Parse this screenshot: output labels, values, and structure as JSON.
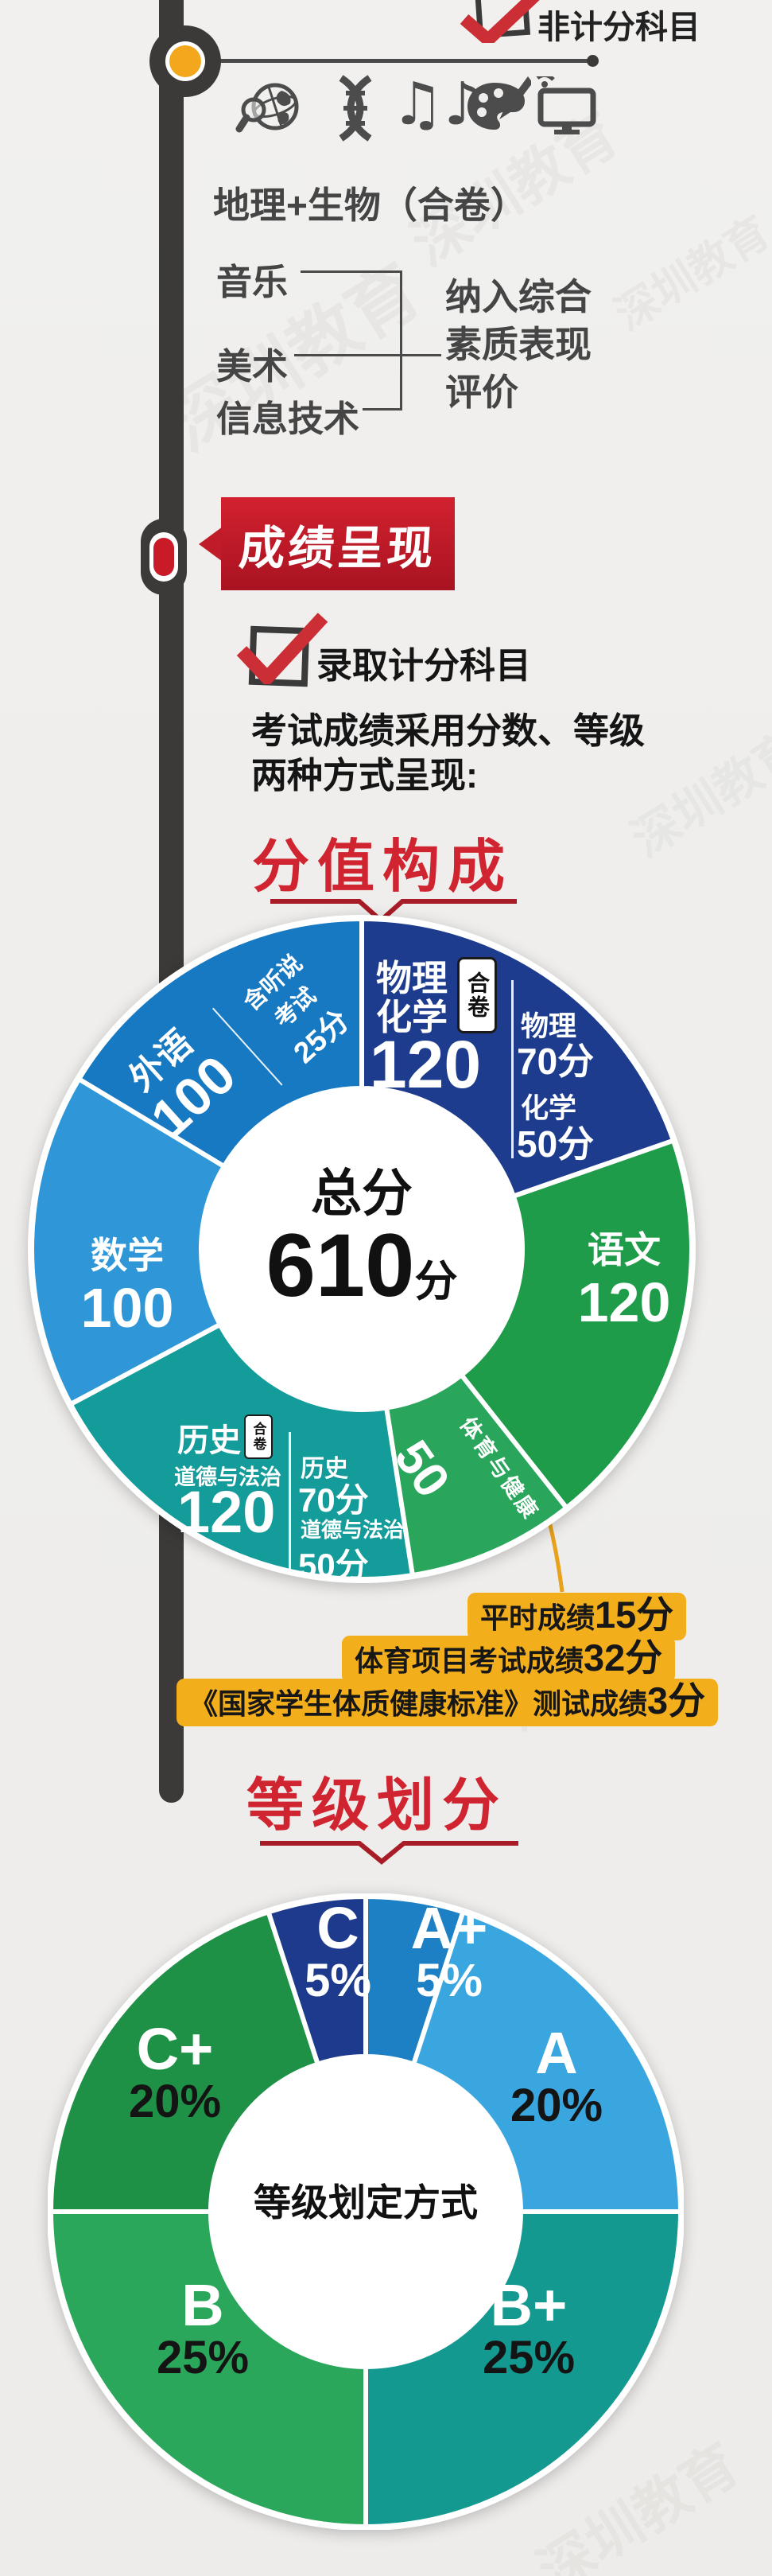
{
  "page": {
    "watermark": "深圳教育"
  },
  "non_scoring_section": {
    "checkbox_label": "非计分科目",
    "icons": [
      "globe-magnifier",
      "dna",
      "music-notes",
      "paint-palette",
      "computer"
    ],
    "combined_subject": "地理+生物（合卷）",
    "evaluated_subjects": [
      "音乐",
      "美术",
      "信息技术"
    ],
    "note_lines": [
      "纳入综合",
      "素质表现",
      "评价"
    ]
  },
  "score_section": {
    "banner": "成绩呈现",
    "checkbox_label": "录取计分科目",
    "desc_line1": "考试成绩采用分数、等级",
    "desc_line2": "两种方式呈现:"
  },
  "pe_callout": {
    "color": "#f3ae1b",
    "lines": [
      {
        "text": "平时成绩",
        "value": "15分"
      },
      {
        "text": "体育项目考试成绩",
        "value": "32分"
      },
      {
        "text": "《国家学生体质健康标准》测试成绩",
        "value": "3分"
      }
    ]
  },
  "chart_data": [
    {
      "type": "pie",
      "title": "分值构成",
      "center": {
        "label": "总分",
        "value": "610",
        "unit": "分"
      },
      "total": 610,
      "segments": [
        {
          "subject": "物理化学",
          "tag": "合卷",
          "value": 120,
          "score_label": "120",
          "color": "#1e3c8e",
          "breakdown": [
            {
              "name": "物理",
              "score": "70分"
            },
            {
              "name": "化学",
              "score": "50分"
            }
          ]
        },
        {
          "subject": "语文",
          "value": 120,
          "score_label": "120",
          "color": "#1f9c4a"
        },
        {
          "subject": "体育与健康",
          "value": 50,
          "score_label": "50",
          "color": "#2aa55c"
        },
        {
          "subject": "历史",
          "subject_sub": "道德与法治",
          "tag": "合卷",
          "value": 120,
          "score_label": "120",
          "color": "#149c9b",
          "breakdown": [
            {
              "name": "历史",
              "score": "70分"
            },
            {
              "name": "道德与法治",
              "score": "50分"
            }
          ]
        },
        {
          "subject": "数学",
          "value": 100,
          "score_label": "100",
          "color": "#2f97d8"
        },
        {
          "subject": "外语",
          "value": 100,
          "score_label": "100",
          "color": "#1779c2",
          "breakdown_lines": [
            "含听说",
            "考试",
            "25分"
          ]
        }
      ]
    },
    {
      "type": "pie",
      "title": "等级划分",
      "center_label": "等级划定方式",
      "segments": [
        {
          "grade": "A+",
          "pct": 5,
          "pct_label": "5%",
          "color": "#1d80c4",
          "pct_color": "#ffffff"
        },
        {
          "grade": "A",
          "pct": 20,
          "pct_label": "20%",
          "color": "#3aa6e0",
          "pct_color": "#141414"
        },
        {
          "grade": "B+",
          "pct": 25,
          "pct_label": "25%",
          "color": "#13998f",
          "pct_color": "#141414"
        },
        {
          "grade": "B",
          "pct": 25,
          "pct_label": "25%",
          "color": "#2ba75c",
          "pct_color": "#141414"
        },
        {
          "grade": "C+",
          "pct": 20,
          "pct_label": "20%",
          "color": "#1f9147",
          "pct_color": "#141414"
        },
        {
          "grade": "C",
          "pct": 5,
          "pct_label": "5%",
          "color": "#1d3a8c",
          "pct_color": "#ffffff"
        }
      ]
    }
  ]
}
